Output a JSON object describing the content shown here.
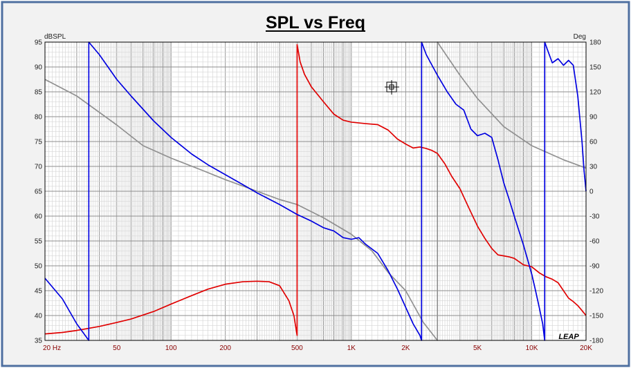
{
  "chart_data": {
    "type": "line",
    "title": "SPL vs Freq",
    "xscale": "log",
    "xlim": [
      20,
      20000
    ],
    "x_ticks": [
      {
        "value": 20,
        "label": "20  Hz"
      },
      {
        "value": 50,
        "label": "50"
      },
      {
        "value": 100,
        "label": "100"
      },
      {
        "value": 200,
        "label": "200"
      },
      {
        "value": 500,
        "label": "500"
      },
      {
        "value": 1000,
        "label": "1K"
      },
      {
        "value": 2000,
        "label": "2K"
      },
      {
        "value": 5000,
        "label": "5K"
      },
      {
        "value": 10000,
        "label": "10K"
      },
      {
        "value": 20000,
        "label": "20K"
      }
    ],
    "ylabel_left": "dBSPL",
    "ylim_left": [
      35,
      95
    ],
    "y_ticks_left": [
      35,
      40,
      45,
      50,
      55,
      60,
      65,
      70,
      75,
      80,
      85,
      90,
      95
    ],
    "ylabel_right": "Deg",
    "ylim_right": [
      -180,
      180
    ],
    "y_ticks_right": [
      -180,
      -150,
      -120,
      -90,
      -60,
      -30,
      0,
      30,
      60,
      90,
      120,
      150,
      180
    ],
    "grid": true,
    "logo": "LEAP",
    "series": [
      {
        "axis": "left",
        "color": "#e00000",
        "points": [
          [
            20,
            36.3
          ],
          [
            25,
            36.6
          ],
          [
            30,
            37.0
          ],
          [
            40,
            37.8
          ],
          [
            50,
            38.6
          ],
          [
            60,
            39.3
          ],
          [
            80,
            40.8
          ],
          [
            100,
            42.3
          ],
          [
            130,
            44.0
          ],
          [
            160,
            45.3
          ],
          [
            200,
            46.3
          ],
          [
            250,
            46.8
          ],
          [
            300,
            46.9
          ],
          [
            350,
            46.8
          ],
          [
            400,
            46.0
          ],
          [
            450,
            43.0
          ],
          [
            480,
            40.0
          ],
          [
            500,
            36.0
          ],
          [
            500,
            94.5
          ],
          [
            520,
            91.0
          ],
          [
            550,
            88.5
          ],
          [
            600,
            86.0
          ],
          [
            700,
            83.0
          ],
          [
            800,
            80.5
          ],
          [
            900,
            79.3
          ],
          [
            1000,
            78.9
          ],
          [
            1200,
            78.6
          ],
          [
            1400,
            78.4
          ],
          [
            1600,
            77.3
          ],
          [
            1800,
            75.5
          ],
          [
            2000,
            74.5
          ],
          [
            2200,
            73.7
          ],
          [
            2400,
            73.9
          ],
          [
            2600,
            73.6
          ],
          [
            2800,
            73.2
          ],
          [
            3000,
            72.6
          ],
          [
            3300,
            70.5
          ],
          [
            3600,
            68.0
          ],
          [
            4000,
            65.5
          ],
          [
            4500,
            61.5
          ],
          [
            5000,
            58.0
          ],
          [
            5500,
            55.5
          ],
          [
            6000,
            53.5
          ],
          [
            6500,
            52.2
          ],
          [
            7000,
            52.0
          ],
          [
            7500,
            51.8
          ],
          [
            8000,
            51.5
          ],
          [
            9000,
            50.2
          ],
          [
            10000,
            49.8
          ],
          [
            11000,
            48.6
          ],
          [
            12000,
            47.8
          ],
          [
            13000,
            47.3
          ],
          [
            14000,
            46.6
          ],
          [
            15000,
            45.0
          ],
          [
            16000,
            43.5
          ],
          [
            17000,
            42.8
          ],
          [
            18000,
            42.0
          ],
          [
            19000,
            41.0
          ],
          [
            20000,
            40.0
          ]
        ]
      },
      {
        "axis": "right",
        "color": "#0000e0",
        "points": [
          [
            20,
            -105
          ],
          [
            25,
            -130
          ],
          [
            30,
            -160
          ],
          [
            35,
            -180
          ],
          [
            35,
            180
          ],
          [
            40,
            165
          ],
          [
            50,
            135
          ],
          [
            60,
            115
          ],
          [
            80,
            85
          ],
          [
            100,
            65
          ],
          [
            130,
            45
          ],
          [
            160,
            32
          ],
          [
            200,
            20
          ],
          [
            250,
            8
          ],
          [
            300,
            -2
          ],
          [
            400,
            -16
          ],
          [
            500,
            -28
          ],
          [
            600,
            -36
          ],
          [
            700,
            -44
          ],
          [
            800,
            -48
          ],
          [
            900,
            -56
          ],
          [
            1000,
            -58
          ],
          [
            1100,
            -56
          ],
          [
            1200,
            -64
          ],
          [
            1400,
            -75
          ],
          [
            1600,
            -96
          ],
          [
            1800,
            -118
          ],
          [
            2000,
            -140
          ],
          [
            2200,
            -160
          ],
          [
            2400,
            -174
          ],
          [
            2450,
            -180
          ],
          [
            2450,
            180
          ],
          [
            2600,
            165
          ],
          [
            2800,
            152
          ],
          [
            3000,
            140
          ],
          [
            3400,
            120
          ],
          [
            3800,
            105
          ],
          [
            4200,
            98
          ],
          [
            4600,
            75
          ],
          [
            5000,
            67
          ],
          [
            5500,
            70
          ],
          [
            6000,
            65
          ],
          [
            6500,
            38
          ],
          [
            7000,
            10
          ],
          [
            7500,
            -10
          ],
          [
            8000,
            -30
          ],
          [
            9000,
            -65
          ],
          [
            10000,
            -100
          ],
          [
            10500,
            -120
          ],
          [
            11000,
            -140
          ],
          [
            11500,
            -160
          ],
          [
            11800,
            -180
          ],
          [
            11800,
            180
          ],
          [
            12500,
            165
          ],
          [
            13000,
            155
          ],
          [
            14000,
            160
          ],
          [
            15000,
            152
          ],
          [
            16000,
            158
          ],
          [
            17000,
            152
          ],
          [
            18000,
            115
          ],
          [
            19000,
            60
          ],
          [
            19500,
            25
          ],
          [
            20000,
            0
          ]
        ]
      },
      {
        "axis": "right",
        "color": "#909090",
        "points": [
          [
            20,
            135
          ],
          [
            30,
            115
          ],
          [
            50,
            80
          ],
          [
            70,
            55
          ],
          [
            100,
            40
          ],
          [
            150,
            25
          ],
          [
            200,
            14
          ],
          [
            300,
            0
          ],
          [
            400,
            -10
          ],
          [
            500,
            -16
          ],
          [
            700,
            -32
          ],
          [
            1000,
            -52
          ],
          [
            1300,
            -72
          ],
          [
            1600,
            -98
          ],
          [
            2000,
            -120
          ],
          [
            2500,
            -158
          ],
          [
            3000,
            -180
          ],
          [
            3000,
            180
          ],
          [
            4000,
            140
          ],
          [
            5000,
            112
          ],
          [
            7000,
            78
          ],
          [
            10000,
            55
          ],
          [
            15000,
            38
          ],
          [
            20000,
            28
          ]
        ]
      }
    ]
  }
}
